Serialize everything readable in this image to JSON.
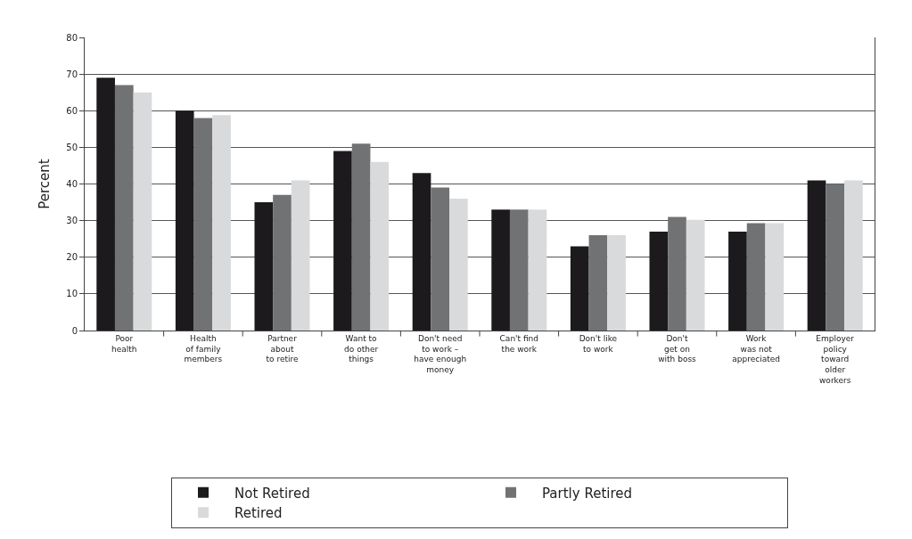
{
  "chart_data": {
    "type": "bar",
    "ylabel": "Percent",
    "categories": [
      "Poor\nhealth",
      "Health\nof family\nmembers",
      "Partner\nabout\nto retire",
      "Want to\ndo other\nthings",
      "Don't need\nto work –\nhave enough\nmoney",
      "Can't find\nthe work",
      "Don't like\nto work",
      "Don't\nget on\nwith boss",
      "Work\nwas not\nappreciated",
      "Employer\npolicy\ntoward\nolder\nworkers"
    ],
    "series": [
      {
        "name": "Not Retired",
        "color": "#1c1a1d",
        "values": [
          69,
          60,
          35,
          49,
          43,
          33,
          23,
          27,
          27,
          41
        ]
      },
      {
        "name": "Partly Retired",
        "color": "#717274",
        "values": [
          67,
          58,
          37,
          51,
          39,
          33,
          26,
          31,
          29.3,
          40
        ]
      },
      {
        "name": "Retired",
        "color": "#d9dadc",
        "values": [
          65,
          58.8,
          41,
          46,
          36,
          33,
          26,
          30.2,
          29.3,
          41
        ]
      }
    ],
    "ylim": [
      0,
      80
    ],
    "yticks": [
      0,
      10,
      20,
      30,
      40,
      50,
      60,
      70,
      80
    ],
    "grid": "y",
    "legend": "bottom"
  }
}
